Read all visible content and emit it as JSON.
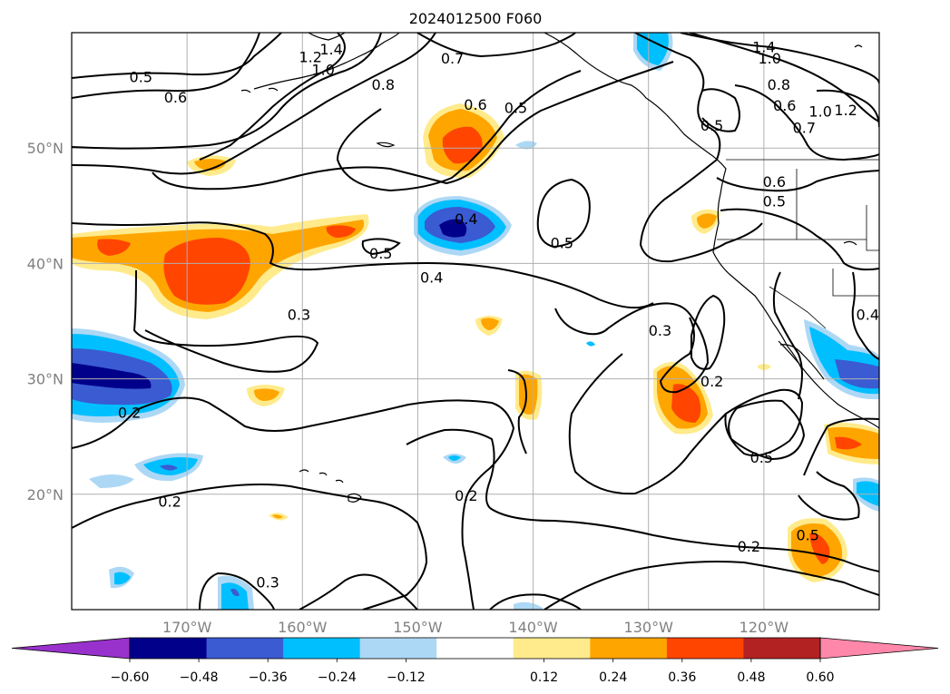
{
  "title": "2024012500 F060",
  "map": {
    "projection": "PlateCarree",
    "lon_range": [
      -180,
      -110
    ],
    "lat_range": [
      10,
      60
    ],
    "gridlines": true,
    "lon_ticks": [
      {
        "lon": -170,
        "label": "170°W"
      },
      {
        "lon": -160,
        "label": "160°W"
      },
      {
        "lon": -150,
        "label": "150°W"
      },
      {
        "lon": -140,
        "label": "140°W"
      },
      {
        "lon": -130,
        "label": "130°W"
      },
      {
        "lon": -120,
        "label": "120°W"
      }
    ],
    "lat_ticks": [
      {
        "lat": 20,
        "label": "20°N"
      },
      {
        "lat": 30,
        "label": "30°N"
      },
      {
        "lat": 40,
        "label": "40°N"
      },
      {
        "lat": 50,
        "label": "50°N"
      }
    ]
  },
  "colorbar": {
    "orientation": "horizontal",
    "extend": "both",
    "levels": [
      -0.72,
      -0.6,
      -0.48,
      -0.36,
      -0.24,
      -0.12,
      0.12,
      0.24,
      0.36,
      0.48,
      0.6,
      0.72
    ],
    "colors": [
      "#9932cc",
      "#00008b",
      "#3a5bd2",
      "#00bfff",
      "#add8f5",
      "#ffffff",
      "#ffeb8c",
      "#ffa500",
      "#ff4500",
      "#b22222",
      "#ff88aa"
    ],
    "tick_values": [
      -0.6,
      -0.48,
      -0.36,
      -0.24,
      -0.12,
      0.12,
      0.24,
      0.36,
      0.48,
      0.6
    ],
    "tick_labels": [
      "−0.60",
      "−0.48",
      "−0.36",
      "−0.24",
      "−0.12",
      "0.12",
      "0.24",
      "0.36",
      "0.48",
      "0.60"
    ]
  },
  "contour_labels": [
    {
      "text": "0.5",
      "lon": -174,
      "lat": 56.2
    },
    {
      "text": "0.6",
      "lon": -171,
      "lat": 54.4
    },
    {
      "text": "1.4",
      "lon": -157.5,
      "lat": 58.6
    },
    {
      "text": "1.2",
      "lon": -159.3,
      "lat": 57.9
    },
    {
      "text": "1.0",
      "lon": -158.2,
      "lat": 56.8
    },
    {
      "text": "0.8",
      "lon": -153,
      "lat": 55.5
    },
    {
      "text": "0.7",
      "lon": -147,
      "lat": 57.8
    },
    {
      "text": "0.6",
      "lon": -145,
      "lat": 53.8
    },
    {
      "text": "0.5",
      "lon": -141.5,
      "lat": 53.5
    },
    {
      "text": "0.4",
      "lon": -145.8,
      "lat": 43.9
    },
    {
      "text": "0.5",
      "lon": -153.2,
      "lat": 40.9
    },
    {
      "text": "0.5",
      "lon": -137.5,
      "lat": 41.8
    },
    {
      "text": "0.4",
      "lon": -148.8,
      "lat": 38.8
    },
    {
      "text": "0.3",
      "lon": -160.3,
      "lat": 35.6
    },
    {
      "text": "0.3",
      "lon": -129,
      "lat": 34.2
    },
    {
      "text": "0.2",
      "lon": -124.5,
      "lat": 29.8
    },
    {
      "text": "0.5",
      "lon": -124.5,
      "lat": 52.0
    },
    {
      "text": "1.4",
      "lon": -120,
      "lat": 58.8
    },
    {
      "text": "1.0",
      "lon": -119.5,
      "lat": 57.8
    },
    {
      "text": "0.8",
      "lon": -118.7,
      "lat": 55.5
    },
    {
      "text": "0.6",
      "lon": -118.2,
      "lat": 53.7
    },
    {
      "text": "0.7",
      "lon": -116.5,
      "lat": 51.8
    },
    {
      "text": "1.0",
      "lon": -115.1,
      "lat": 53.2
    },
    {
      "text": "1.2",
      "lon": -112.9,
      "lat": 53.3
    },
    {
      "text": "0.6",
      "lon": -119.1,
      "lat": 47.1
    },
    {
      "text": "0.5",
      "lon": -119.1,
      "lat": 45.4
    },
    {
      "text": "0.4",
      "lon": -111,
      "lat": 35.6
    },
    {
      "text": "0.2",
      "lon": -175,
      "lat": 27.1
    },
    {
      "text": "0.2",
      "lon": -171.5,
      "lat": 19.4
    },
    {
      "text": "0.2",
      "lon": -145.8,
      "lat": 19.9
    },
    {
      "text": "0.3",
      "lon": -163,
      "lat": 12.4
    },
    {
      "text": "0.5",
      "lon": -120.2,
      "lat": 23.2
    },
    {
      "text": "0.5",
      "lon": -116.2,
      "lat": 16.5
    },
    {
      "text": "0.2",
      "lon": -121.3,
      "lat": 15.5
    }
  ]
}
